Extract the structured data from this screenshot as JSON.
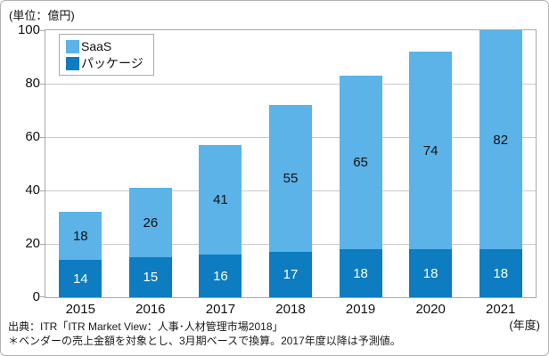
{
  "unit_label": "(単位：億円)",
  "axis_suffix_label": "(年度)",
  "source": {
    "line1": "出典：ITR「ITR Market View：人事･人材管理市場2018」",
    "line2": "＊ベンダーの売上金額を対象とし、3月期ベースで換算。2017年度以降は予測値。"
  },
  "colors": {
    "saas": "#5BB3E7",
    "package": "#0D7CC1",
    "gridline": "#c9c9c9",
    "plot_border": "#a8a8a8",
    "frame_border": "#b3b3b3"
  },
  "chart_data": {
    "type": "bar",
    "stacked": true,
    "title": "",
    "unit": "億円",
    "categories": [
      "2015",
      "2016",
      "2017",
      "2018",
      "2019",
      "2020",
      "2021"
    ],
    "series": [
      {
        "name": "パッケージ",
        "values": [
          14,
          15,
          16,
          17,
          18,
          18,
          18
        ],
        "color": "#0D7CC1",
        "label_color": "#ffffff"
      },
      {
        "name": "SaaS",
        "values": [
          18,
          26,
          41,
          55,
          65,
          74,
          82
        ],
        "color": "#5BB3E7",
        "label_color": "#111111"
      }
    ],
    "totals": [
      32,
      41,
      57,
      72,
      83,
      92,
      100
    ],
    "legend": [
      {
        "label": "SaaS",
        "color": "#5BB3E7"
      },
      {
        "label": "パッケージ",
        "color": "#0D7CC1"
      }
    ],
    "ylim": [
      0,
      100
    ],
    "yticks": [
      0,
      20,
      40,
      60,
      80,
      100
    ],
    "grid": true,
    "legend_position": "top-left-inside",
    "xlabel": "(年度)",
    "ylabel": "(単位：億円)"
  }
}
